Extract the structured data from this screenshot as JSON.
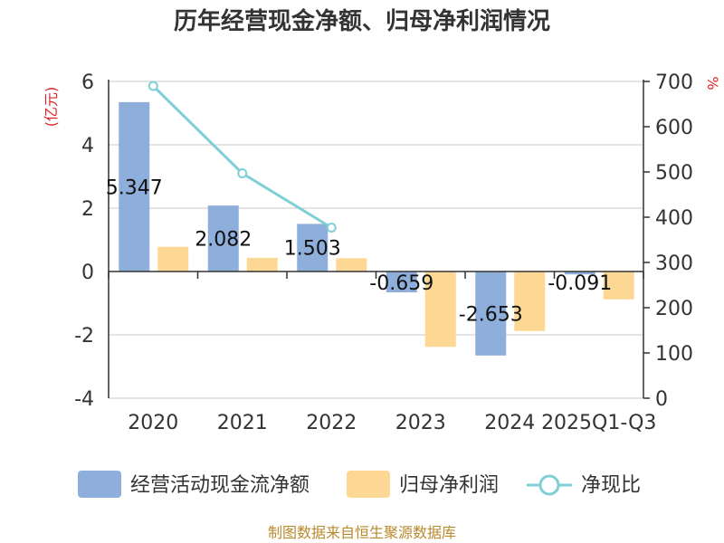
{
  "chart_data": {
    "type": "bar",
    "title": "历年经营现金净额、归母净利润情况",
    "categories": [
      "2020",
      "2021",
      "2022",
      "2023",
      "2024",
      "2025Q1-Q3"
    ],
    "y_left": {
      "unit": "(亿元)",
      "ticks": [
        "6",
        "4",
        "2",
        "0",
        "-2",
        "-4"
      ],
      "ylim": [
        -4,
        6
      ]
    },
    "y_right": {
      "unit": "%",
      "ticks": [
        "700",
        "600",
        "500",
        "400",
        "300",
        "200",
        "100",
        "0"
      ],
      "ylim": [
        0,
        700
      ]
    },
    "series": [
      {
        "name": "经营活动现金流净额",
        "type": "bar",
        "axis": "left",
        "color": "#8eaedb",
        "values": [
          5.347,
          2.082,
          1.503,
          -0.659,
          -2.653,
          -0.091
        ],
        "labels": [
          "5.347",
          "2.082",
          "1.503",
          "-0.659",
          "-2.653",
          "-0.091"
        ]
      },
      {
        "name": "归母净利润",
        "type": "bar",
        "axis": "left",
        "color": "#fdd894",
        "values": [
          0.78,
          0.43,
          0.42,
          -2.38,
          -1.88,
          -0.88
        ]
      },
      {
        "name": "净现比",
        "type": "line",
        "axis": "right",
        "color": "#7ecfd6",
        "values": [
          690,
          497,
          377,
          null,
          null,
          null
        ]
      }
    ],
    "legend_position": "bottom",
    "grid": true
  },
  "source": "制图数据来自恒生聚源数据库"
}
